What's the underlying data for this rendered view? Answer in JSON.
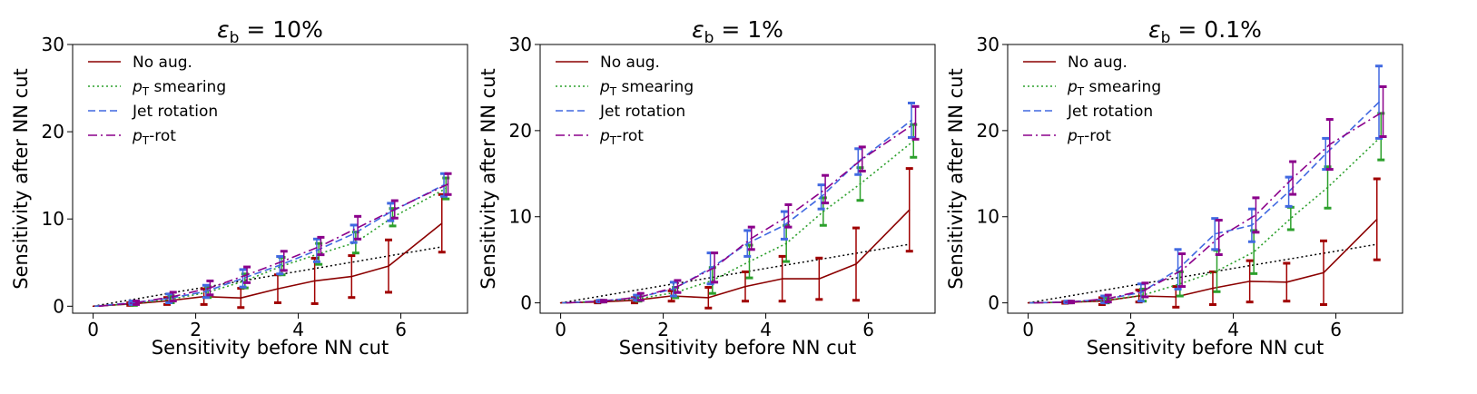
{
  "chart_data": [
    {
      "type": "line",
      "title_symbol": "ε",
      "title_subscript": "b",
      "title_value": " = 10%",
      "xlabel": "Sensitivity before NN cut",
      "ylabel": "Sensitivity after NN cut",
      "xlim": [
        -0.4,
        7.3
      ],
      "ylim": [
        -0.8,
        30
      ],
      "xticks": [
        0,
        2,
        4,
        6
      ],
      "yticks": [
        0,
        10,
        20,
        30
      ],
      "legend_position": "top-left",
      "reference_line": {
        "name": "y = x",
        "x": [
          0,
          6.8
        ],
        "y": [
          0,
          6.8
        ]
      },
      "series": [
        {
          "key": "noaug",
          "name": "No aug.",
          "color": "#8b0000",
          "style": "solid",
          "errcolor": "#a00000",
          "x": [
            0,
            0.72,
            1.44,
            2.16,
            2.88,
            3.6,
            4.32,
            5.04,
            5.76,
            6.8
          ],
          "y": [
            0,
            0.25,
            0.6,
            1.1,
            0.95,
            2.0,
            2.9,
            3.4,
            4.6,
            9.5
          ],
          "err": [
            0,
            0.15,
            0.4,
            0.9,
            1.1,
            1.6,
            2.6,
            2.4,
            3.0,
            3.3
          ]
        },
        {
          "key": "pts",
          "name": "p_T smearing",
          "label_main": "p",
          "label_sub": "T",
          "label_rest": " smearing",
          "color": "#2ca02c",
          "style": "dotted",
          "errcolor": "#2ca02c",
          "x": [
            0.08,
            0.8,
            1.52,
            2.24,
            2.96,
            3.68,
            4.4,
            5.12,
            5.84,
            6.88
          ],
          "y": [
            0,
            0.3,
            0.8,
            1.6,
            2.9,
            4.6,
            6.0,
            7.3,
            10.2,
            13.5
          ],
          "err": [
            0,
            0.2,
            0.4,
            0.6,
            0.8,
            1.0,
            1.2,
            1.2,
            1.0,
            1.2
          ]
        },
        {
          "key": "rot",
          "name": "Jet rotation",
          "color": "#4169e1",
          "style": "dashed",
          "errcolor": "#4169e1",
          "x": [
            0.04,
            0.76,
            1.48,
            2.2,
            2.92,
            3.64,
            4.36,
            5.08,
            5.8,
            6.84
          ],
          "y": [
            0,
            0.4,
            0.9,
            1.7,
            3.2,
            4.7,
            6.4,
            8.3,
            10.8,
            13.9
          ],
          "err": [
            0,
            0.2,
            0.5,
            0.7,
            1.0,
            1.0,
            1.3,
            1.0,
            1.0,
            1.3
          ]
        },
        {
          "key": "ptrot",
          "name": "p_T-rot",
          "label_main": "p",
          "label_sub": "T",
          "label_rest": "-rot",
          "color": "#8b008b",
          "style": "dashdot",
          "errcolor": "#8b008b",
          "x": [
            0.12,
            0.84,
            1.56,
            2.28,
            3.0,
            3.72,
            4.44,
            5.16,
            5.88,
            6.92
          ],
          "y": [
            0,
            0.4,
            1.1,
            2.1,
            3.6,
            5.2,
            6.9,
            9.0,
            11.1,
            14.0
          ],
          "err": [
            0,
            0.2,
            0.5,
            0.8,
            0.9,
            1.1,
            1.0,
            1.3,
            1.0,
            1.2
          ]
        }
      ]
    },
    {
      "type": "line",
      "title_symbol": "ε",
      "title_subscript": "b",
      "title_value": " = 1%",
      "xlabel": "Sensitivity before NN cut",
      "ylabel": "Sensitivity after NN cut",
      "xlim": [
        -0.4,
        7.3
      ],
      "ylim": [
        -1.2,
        30
      ],
      "xticks": [
        0,
        2,
        4,
        6
      ],
      "yticks": [
        0,
        10,
        20,
        30
      ],
      "legend_position": "top-left",
      "reference_line": {
        "name": "y = x",
        "x": [
          0,
          6.8
        ],
        "y": [
          0,
          6.8
        ]
      },
      "series": [
        {
          "key": "noaug",
          "name": "No aug.",
          "color": "#8b0000",
          "style": "solid",
          "errcolor": "#a00000",
          "x": [
            0,
            0.72,
            1.44,
            2.16,
            2.88,
            3.6,
            4.32,
            5.04,
            5.76,
            6.8
          ],
          "y": [
            0,
            0.1,
            0.3,
            0.8,
            0.6,
            1.9,
            2.8,
            2.8,
            4.5,
            10.8
          ],
          "err": [
            0,
            0.1,
            0.3,
            0.6,
            1.2,
            1.7,
            2.6,
            2.4,
            4.2,
            4.8
          ]
        },
        {
          "key": "pts",
          "name": "p_T smearing",
          "label_main": "p",
          "label_sub": "T",
          "label_rest": " smearing",
          "color": "#2ca02c",
          "style": "dotted",
          "errcolor": "#2ca02c",
          "x": [
            0.08,
            0.8,
            1.52,
            2.24,
            2.96,
            3.68,
            4.4,
            5.12,
            5.84,
            6.88
          ],
          "y": [
            0,
            0.2,
            0.5,
            1.2,
            2.6,
            4.8,
            6.9,
            10.6,
            13.8,
            18.8
          ],
          "err": [
            0,
            0.1,
            0.3,
            0.6,
            1.5,
            1.9,
            2.1,
            1.6,
            1.9,
            1.9
          ]
        },
        {
          "key": "rot",
          "name": "Jet rotation",
          "color": "#4169e1",
          "style": "dashed",
          "errcolor": "#4169e1",
          "x": [
            0.04,
            0.76,
            1.48,
            2.2,
            2.92,
            3.64,
            4.36,
            5.08,
            5.8,
            6.84
          ],
          "y": [
            0,
            0.2,
            0.6,
            1.6,
            4.0,
            6.9,
            9.0,
            12.3,
            16.4,
            21.2
          ],
          "err": [
            0,
            0.1,
            0.3,
            0.8,
            1.8,
            1.5,
            1.6,
            1.4,
            1.5,
            2.0
          ]
        },
        {
          "key": "ptrot",
          "name": "p_T-rot",
          "label_main": "p",
          "label_sub": "T",
          "label_rest": "-rot",
          "color": "#8b008b",
          "style": "dashdot",
          "errcolor": "#8b008b",
          "x": [
            0.12,
            0.84,
            1.56,
            2.28,
            3.0,
            3.72,
            4.44,
            5.16,
            5.88,
            6.92
          ],
          "y": [
            0,
            0.2,
            0.7,
            1.9,
            4.1,
            7.5,
            10.1,
            13.2,
            16.7,
            20.9
          ],
          "err": [
            0,
            0.1,
            0.4,
            0.7,
            1.7,
            1.3,
            1.3,
            1.6,
            1.4,
            1.9
          ]
        }
      ]
    },
    {
      "type": "line",
      "title_symbol": "ε",
      "title_subscript": "b",
      "title_value": " = 0.1%",
      "xlabel": "Sensitivity before NN cut",
      "ylabel": "Sensitivity after NN cut",
      "xlim": [
        -0.4,
        7.3
      ],
      "ylim": [
        -1.2,
        30
      ],
      "xticks": [
        0,
        2,
        4,
        6
      ],
      "yticks": [
        0,
        10,
        20,
        30
      ],
      "legend_position": "top-left",
      "reference_line": {
        "name": "y = x",
        "x": [
          0,
          6.8
        ],
        "y": [
          0,
          6.8
        ]
      },
      "series": [
        {
          "key": "noaug",
          "name": "No aug.",
          "color": "#8b0000",
          "style": "solid",
          "errcolor": "#a00000",
          "x": [
            0,
            0.72,
            1.44,
            2.16,
            2.88,
            3.6,
            4.32,
            5.04,
            5.76,
            6.8
          ],
          "y": [
            0,
            0.05,
            0.2,
            0.8,
            0.7,
            1.7,
            2.5,
            2.4,
            3.5,
            9.7
          ],
          "err": [
            0,
            0.1,
            0.4,
            0.7,
            1.2,
            1.9,
            2.4,
            2.2,
            3.7,
            4.7
          ]
        },
        {
          "key": "pts",
          "name": "p_T smearing",
          "label_main": "p",
          "label_sub": "T",
          "label_rest": " smearing",
          "color": "#2ca02c",
          "style": "dotted",
          "errcolor": "#2ca02c",
          "x": [
            0.08,
            0.8,
            1.52,
            2.24,
            2.96,
            3.68,
            4.4,
            5.12,
            5.84,
            6.88
          ],
          "y": [
            0,
            0.1,
            0.3,
            0.9,
            2.2,
            3.7,
            5.9,
            9.8,
            13.4,
            19.3
          ],
          "err": [
            0,
            0.1,
            0.3,
            0.7,
            1.4,
            2.4,
            2.5,
            1.3,
            2.4,
            2.7
          ]
        },
        {
          "key": "rot",
          "name": "Jet rotation",
          "color": "#4169e1",
          "style": "dashed",
          "errcolor": "#4169e1",
          "x": [
            0.04,
            0.76,
            1.48,
            2.2,
            2.92,
            3.64,
            4.36,
            5.08,
            5.8,
            6.84
          ],
          "y": [
            0,
            0.1,
            0.4,
            1.2,
            3.9,
            8.0,
            9.0,
            12.9,
            17.3,
            23.3
          ],
          "err": [
            0,
            0.1,
            0.4,
            1.0,
            2.3,
            1.8,
            1.9,
            1.7,
            1.8,
            4.2
          ]
        },
        {
          "key": "ptrot",
          "name": "p_T-rot",
          "label_main": "p",
          "label_sub": "T",
          "label_rest": "-rot",
          "color": "#8b008b",
          "style": "dashdot",
          "errcolor": "#8b008b",
          "x": [
            0.12,
            0.84,
            1.56,
            2.28,
            3.0,
            3.72,
            4.44,
            5.16,
            5.88,
            6.92
          ],
          "y": [
            0,
            0.1,
            0.5,
            1.5,
            3.8,
            7.6,
            10.2,
            14.5,
            18.4,
            22.2
          ],
          "err": [
            0,
            0.1,
            0.4,
            0.8,
            1.9,
            2.0,
            2.0,
            1.9,
            2.9,
            2.9
          ]
        }
      ]
    }
  ]
}
